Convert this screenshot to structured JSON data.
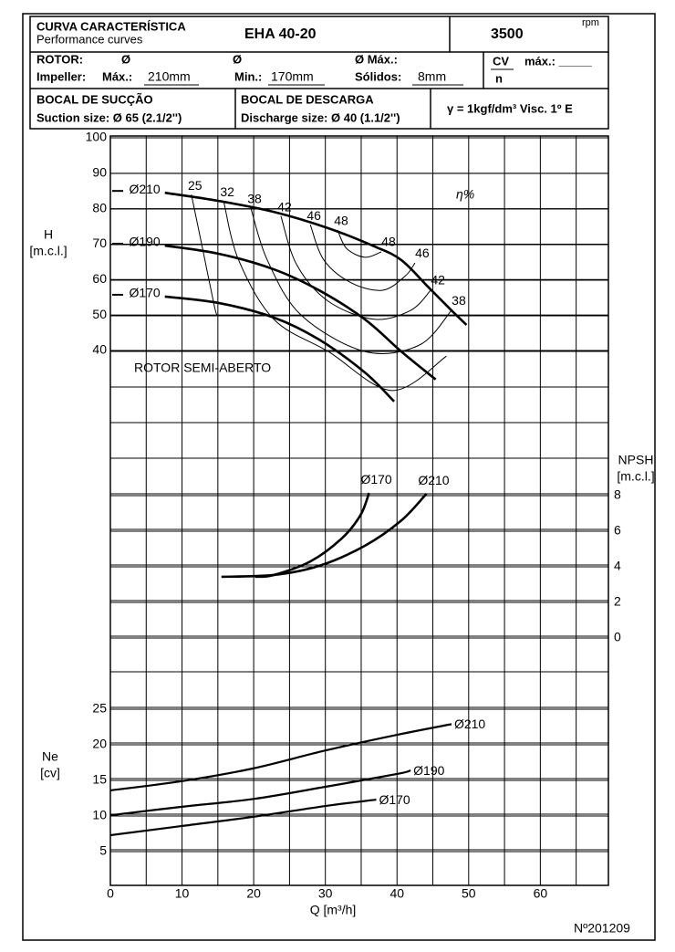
{
  "header": {
    "title": "CURVA CARACTERÍSTICA",
    "subtitle": "Performance curves",
    "model": "EHA 40-20",
    "speed": "3500",
    "speed_unit": "rpm",
    "rotor_label": "ROTOR:",
    "rotor_symbol": "Ø",
    "rotor_symbol2": "Ø",
    "rotor_max_label": "Ø Máx.:",
    "impeller_label": "Impeller:",
    "max_label": "Máx.:",
    "max_value": "210mm",
    "min_label": "Min.:",
    "min_value": "170mm",
    "solids_label": "Sólidos:",
    "solids_value": "8mm",
    "cv_label": "CV",
    "cv_max_label": "máx.: _____",
    "n_label": "n",
    "suction_title": "BOCAL DE SUCÇÃO",
    "suction_size": "Suction size: Ø 65 (2.1/2'')",
    "discharge_title": "BOCAL DE DESCARGA",
    "discharge_size": "Discharge size: Ø 40 (1.1/2'')",
    "fluid": "γ = 1kgf/dm³   Visc. 1º E"
  },
  "chart_data": [
    {
      "type": "line",
      "ylabel": "H",
      "ylabel_unit": "[m.c.l.]",
      "xlim": [
        0,
        69.5
      ],
      "ylim": [
        20,
        100
      ],
      "yticks": [
        40,
        50,
        60,
        70,
        80,
        90,
        100
      ],
      "annotation": "ROTOR SEMI-ABERTO",
      "efficiency_label": "η%",
      "series": [
        {
          "name": "Ø210",
          "color": "#000000",
          "x": [
            7.6,
            15.1,
            22.8,
            30.4,
            36.8,
            40.6,
            44.4,
            47.6,
            49.7
          ],
          "values": [
            84.5,
            82.2,
            79.1,
            74.5,
            69.4,
            65.5,
            57.8,
            51.3,
            47.2
          ]
        },
        {
          "name": "Ø190",
          "color": "#000000",
          "x": [
            7.6,
            15.1,
            22.8,
            29.1,
            35.5,
            40.6,
            45.4
          ],
          "values": [
            69.6,
            67.3,
            62.9,
            57,
            48.8,
            39.7,
            31.8
          ]
        },
        {
          "name": "Ø170",
          "color": "#000000",
          "x": [
            7.6,
            15.1,
            22.8,
            29.1,
            35.5,
            39.6
          ],
          "values": [
            55.2,
            53.4,
            49.3,
            43.1,
            33.8,
            25.6
          ]
        }
      ],
      "efficiency_curves": [
        {
          "labels": [
            "25"
          ],
          "x": [
            11.3,
            12.8,
            14.5,
            14.9
          ],
          "values": [
            84,
            69.4,
            52.6,
            50
          ]
        },
        {
          "labels": [
            "32"
          ],
          "x": [
            15.8,
            17.9,
            22.8,
            30.4,
            39.3,
            46.9
          ],
          "values": [
            82.2,
            65.5,
            48.8,
            39.7,
            28.7,
            38.4
          ]
        },
        {
          "labels": [
            "38",
            "38"
          ],
          "x": [
            19.6,
            21.9,
            26.6,
            35.5,
            43.1,
            47.6
          ],
          "values": [
            80.2,
            65.5,
            50,
            39.7,
            41.5,
            51.3
          ]
        },
        {
          "labels": [
            "42",
            "42"
          ],
          "x": [
            23.8,
            26,
            30.4,
            36.8,
            41.9,
            44.7
          ],
          "values": [
            77.9,
            64.2,
            53.9,
            48.8,
            51.3,
            57
          ]
        },
        {
          "labels": [
            "46",
            "46"
          ],
          "x": [
            27.9,
            29.8,
            33.6,
            38,
            41.2,
            42.5
          ],
          "values": [
            75.5,
            65.5,
            59.1,
            57,
            61.1,
            64.7
          ]
        },
        {
          "labels": [
            "48",
            "48"
          ],
          "x": [
            31.7,
            32.95,
            35.5,
            37.8
          ],
          "values": [
            74,
            68.8,
            66.3,
            67.8
          ]
        }
      ]
    },
    {
      "type": "line",
      "ylabel": "NPSH",
      "ylabel_unit": "[m.c.l.]",
      "xlim": [
        0,
        69.5
      ],
      "ylim": [
        0,
        8
      ],
      "yticks": [
        0,
        2,
        4,
        6,
        8
      ],
      "series": [
        {
          "name": "Ø170",
          "color": "#000000",
          "x": [
            20.2,
            22.8,
            27.9,
            32.3,
            34.9,
            36.1
          ],
          "values": [
            3.44,
            3.54,
            4.3,
            5.6,
            6.9,
            8.15
          ]
        },
        {
          "name": "Ø210",
          "color": "#000000",
          "x": [
            15.5,
            22.8,
            29.1,
            35.5,
            40.6,
            44.1
          ],
          "values": [
            3.44,
            3.54,
            4.05,
            5.18,
            6.6,
            8.1
          ]
        }
      ]
    },
    {
      "type": "line",
      "ylabel": "Ne",
      "ylabel_unit": "[cv]",
      "xlabel": "Q [m³/h]",
      "xlim": [
        0,
        69.5
      ],
      "ylim": [
        0,
        25
      ],
      "yticks": [
        5,
        10,
        15,
        20,
        25
      ],
      "xticks": [
        0,
        10,
        20,
        30,
        40,
        50,
        60
      ],
      "minor_xticks": [
        5,
        15,
        25,
        35,
        45,
        55,
        65
      ],
      "series": [
        {
          "name": "Ø210",
          "color": "#000000",
          "x": [
            0,
            10,
            20,
            30,
            40,
            47.6
          ],
          "values": [
            13.6,
            14.9,
            16.7,
            19.2,
            21.4,
            22.9
          ]
        },
        {
          "name": "Ø190",
          "color": "#000000",
          "x": [
            0,
            10,
            20,
            30,
            40,
            41.9
          ],
          "values": [
            10.1,
            11.3,
            12.4,
            14.1,
            15.9,
            16.4
          ]
        },
        {
          "name": "Ø170",
          "color": "#000000",
          "x": [
            0,
            10,
            20,
            30,
            37.1
          ],
          "values": [
            7.3,
            8.6,
            9.9,
            11.4,
            12.3
          ]
        }
      ]
    }
  ],
  "document_number": "Nº201209"
}
